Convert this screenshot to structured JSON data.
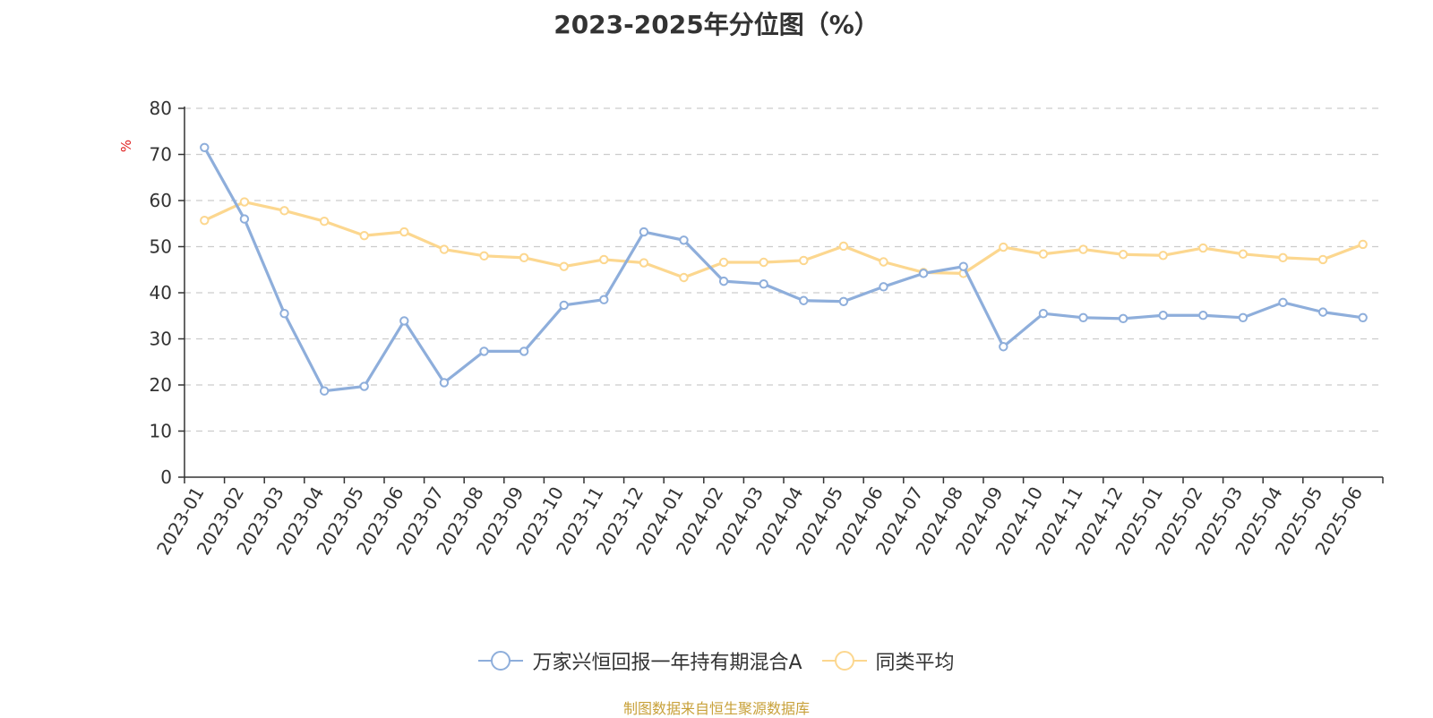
{
  "chart_data": {
    "type": "line",
    "title": "2023-2025年分位图（%）",
    "y_unit_label": "%",
    "ylim": [
      0,
      80
    ],
    "y_ticks": [
      0,
      10,
      20,
      30,
      40,
      50,
      60,
      70,
      80
    ],
    "grid": true,
    "legend_position": "bottom-center",
    "categories": [
      "2023-01",
      "2023-02",
      "2023-03",
      "2023-04",
      "2023-05",
      "2023-06",
      "2023-07",
      "2023-08",
      "2023-09",
      "2023-10",
      "2023-11",
      "2023-12",
      "2024-01",
      "2024-02",
      "2024-03",
      "2024-04",
      "2024-05",
      "2024-06",
      "2024-07",
      "2024-08",
      "2024-09",
      "2024-10",
      "2024-11",
      "2024-12",
      "2025-01",
      "2025-02",
      "2025-03",
      "2025-04",
      "2025-05",
      "2025-06"
    ],
    "series": [
      {
        "name": "万家兴恒回报一年持有期混合A",
        "color": "#8eaedb",
        "values": [
          71.5,
          56.0,
          35.5,
          18.7,
          19.7,
          33.9,
          20.5,
          27.3,
          27.3,
          37.3,
          38.5,
          53.2,
          51.4,
          42.5,
          41.9,
          38.3,
          38.1,
          41.3,
          44.2,
          45.7,
          28.3,
          35.5,
          34.6,
          34.4,
          35.1,
          35.1,
          34.6,
          37.9,
          35.8,
          34.6
        ]
      },
      {
        "name": "同类平均",
        "color": "#fcd78f",
        "values": [
          55.7,
          59.7,
          57.8,
          55.5,
          52.4,
          53.2,
          49.4,
          48.0,
          47.6,
          45.7,
          47.2,
          46.5,
          43.3,
          46.6,
          46.6,
          47.0,
          50.1,
          46.7,
          44.4,
          44.2,
          49.9,
          48.4,
          49.4,
          48.3,
          48.1,
          49.7,
          48.4,
          47.6,
          47.2,
          50.5
        ]
      }
    ]
  },
  "footer": {
    "source_note": "制图数据来自恒生聚源数据库"
  }
}
